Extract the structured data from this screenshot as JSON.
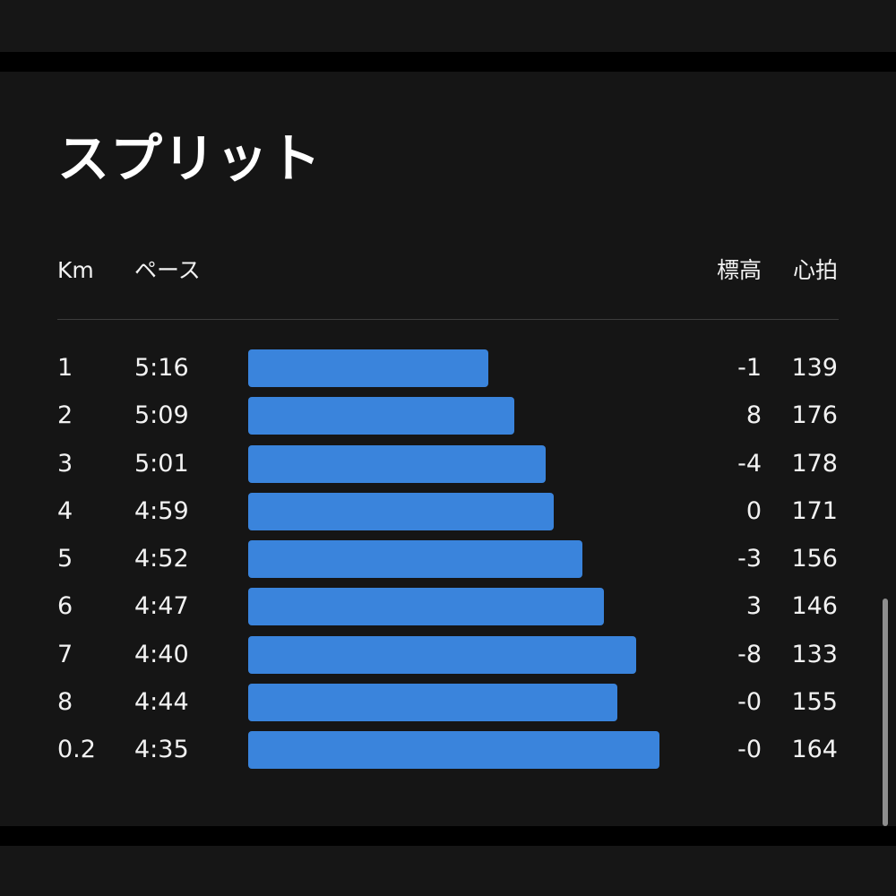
{
  "title": "スプリット",
  "headers": {
    "km": "Km",
    "pace": "ペース",
    "elevation": "標高",
    "heart_rate": "心拍"
  },
  "colors": {
    "bar": "#3a84dc",
    "background": "#151515",
    "text": "#f2f2f2"
  },
  "bar_scale_max_speed_km_per_min": 0.2273,
  "splits": [
    {
      "km": "1",
      "pace": "5:16",
      "pace_seconds": 316,
      "elevation": "-1",
      "heart_rate": "139"
    },
    {
      "km": "2",
      "pace": "5:09",
      "pace_seconds": 309,
      "elevation": "8",
      "heart_rate": "176"
    },
    {
      "km": "3",
      "pace": "5:01",
      "pace_seconds": 301,
      "elevation": "-4",
      "heart_rate": "178"
    },
    {
      "km": "4",
      "pace": "4:59",
      "pace_seconds": 299,
      "elevation": "0",
      "heart_rate": "171"
    },
    {
      "km": "5",
      "pace": "4:52",
      "pace_seconds": 292,
      "elevation": "-3",
      "heart_rate": "156"
    },
    {
      "km": "6",
      "pace": "4:47",
      "pace_seconds": 287,
      "elevation": "3",
      "heart_rate": "146"
    },
    {
      "km": "7",
      "pace": "4:40",
      "pace_seconds": 280,
      "elevation": "-8",
      "heart_rate": "133"
    },
    {
      "km": "8",
      "pace": "4:44",
      "pace_seconds": 284,
      "elevation": "-0",
      "heart_rate": "155"
    },
    {
      "km": "0.2",
      "pace": "4:35",
      "pace_seconds": 275,
      "elevation": "-0",
      "heart_rate": "164"
    }
  ]
}
